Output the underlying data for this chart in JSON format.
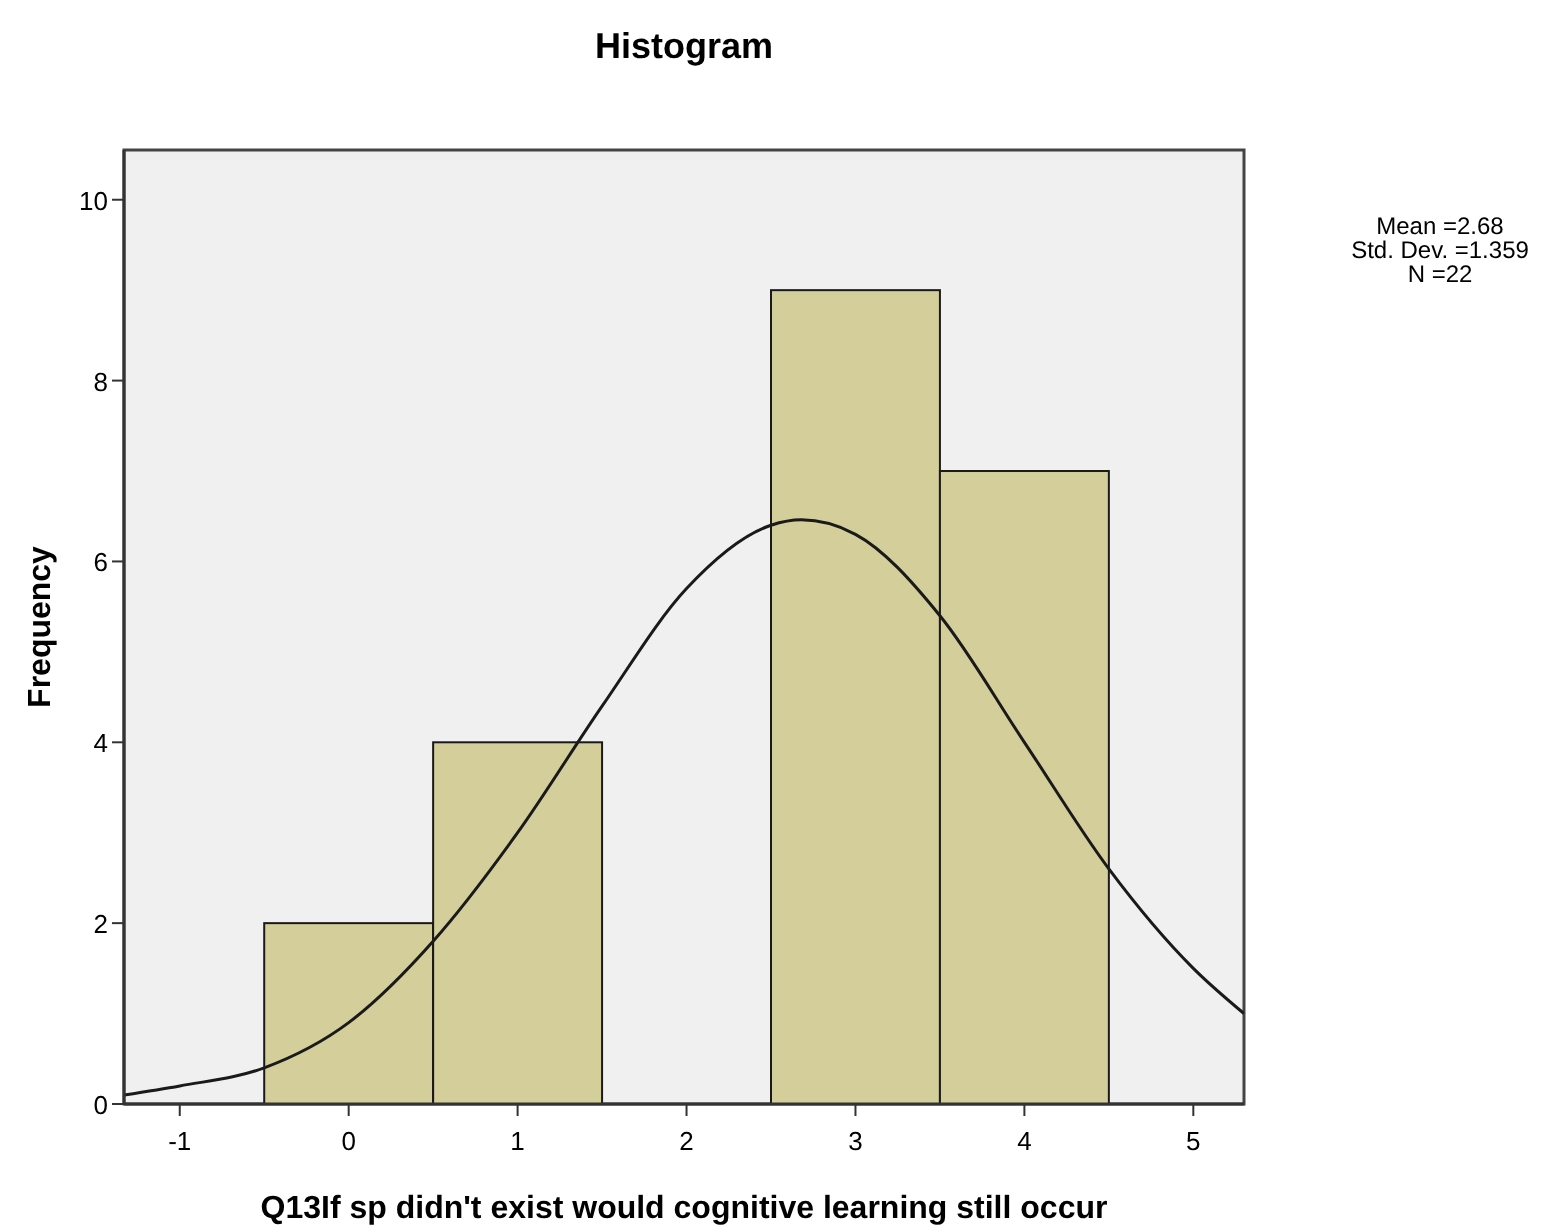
{
  "chart_data": {
    "type": "histogram",
    "title": "Histogram",
    "xlabel": "Q13If sp didn't exist would cognitive learning still occur",
    "ylabel": "Frequency",
    "bins": [
      -0.5,
      0.5,
      1.5,
      2.5,
      3.5,
      4.5
    ],
    "values": [
      2,
      4,
      0,
      9,
      7
    ],
    "color": "#d3ce9a",
    "series": [
      {
        "type": "line",
        "color": "#1a1a1a",
        "x": [
          -1.33,
          -1,
          -0.5,
          0,
          0.5,
          1,
          1.5,
          2,
          2.5,
          2.68,
          3,
          3.5,
          4,
          4.5,
          5,
          5.3
        ],
        "values": [
          0.1,
          0.2,
          0.4,
          0.9,
          1.8,
          3.0,
          4.4,
          5.7,
          6.4,
          6.46,
          6.3,
          5.4,
          4.0,
          2.6,
          1.5,
          1.0
        ]
      }
    ],
    "xlim": [
      -1.33,
      5.3
    ],
    "xticks": [
      -1,
      0,
      1,
      2,
      3,
      4,
      5
    ],
    "ylim": [
      0,
      10.55
    ],
    "yticks": [
      0,
      2,
      4,
      6,
      8,
      10
    ],
    "grid": false,
    "marker": "none",
    "annotations": [
      "Mean =2.68",
      "Std. Dev. =1.359",
      "N =22"
    ]
  }
}
